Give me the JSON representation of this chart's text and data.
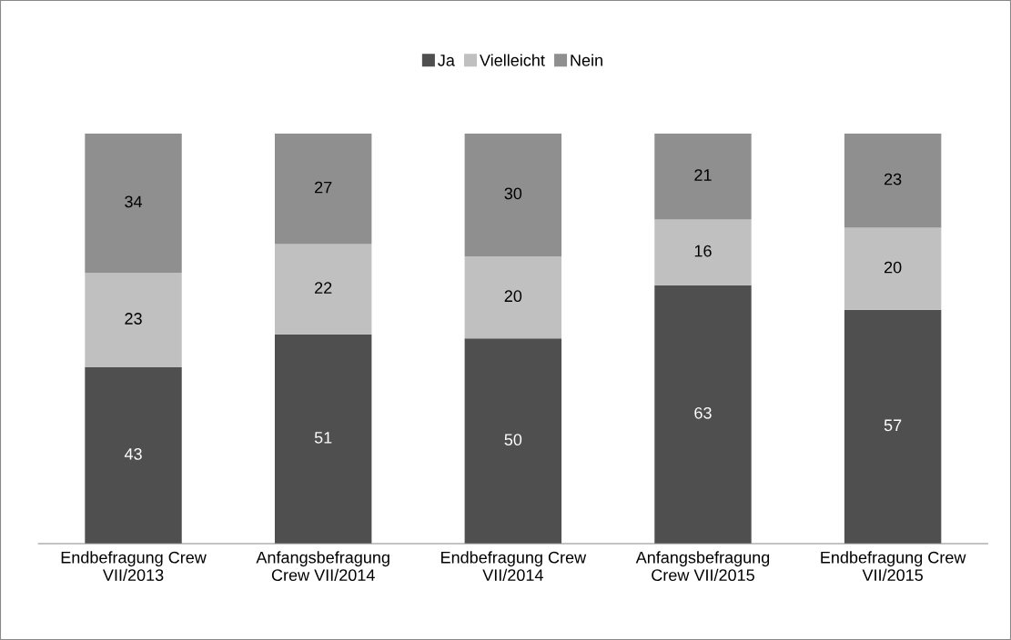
{
  "chart_data": {
    "type": "bar",
    "stacked": true,
    "data_labels": true,
    "legend": "top",
    "grid": false,
    "categories": [
      "Endbefragung Crew\nVII/2013",
      "Anfangsbefragung\nCrew VII/2014",
      "Endbefragung Crew\nVII/2014",
      "Anfangsbefragung\nCrew VII/2015",
      "Endbefragung Crew\nVII/2015"
    ],
    "series": [
      {
        "name": "Ja",
        "color": "#4f4f4f",
        "values": [
          43,
          51,
          50,
          63,
          57
        ]
      },
      {
        "name": "Vielleicht",
        "color": "#c0c0c0",
        "values": [
          23,
          22,
          20,
          16,
          20
        ]
      },
      {
        "name": "Nein",
        "color": "#8f8f8f",
        "values": [
          34,
          27,
          30,
          21,
          23
        ]
      }
    ]
  }
}
